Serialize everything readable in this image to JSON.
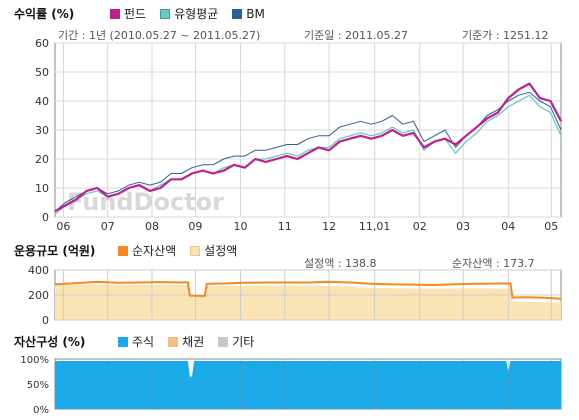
{
  "chart_data": [
    {
      "type": "line",
      "title": "수익률 (%)",
      "legend": [
        {
          "name": "펀드",
          "color": "#c0208e"
        },
        {
          "name": "유형평균",
          "color": "#6ec9c4"
        },
        {
          "name": "BM",
          "color": "#2b5f9a"
        }
      ],
      "info": {
        "period": "기간 : 1년 (2010.05.27 ~ 2011.05.27)",
        "base_date": "기준일 : 2011.05.27",
        "base_price": "기준가 : 1251.12"
      },
      "watermark": "FundDoctor",
      "ylim": [
        0,
        60
      ],
      "yticks": [
        0,
        10,
        20,
        30,
        40,
        50,
        60
      ],
      "xlim": [
        0,
        12
      ],
      "xticks": [
        {
          "label": "06",
          "x": 0.2
        },
        {
          "label": "07",
          "x": 1.25
        },
        {
          "label": "08",
          "x": 2.3
        },
        {
          "label": "09",
          "x": 3.33
        },
        {
          "label": "10",
          "x": 4.4
        },
        {
          "label": "11",
          "x": 5.45
        },
        {
          "label": "12",
          "x": 6.5
        },
        {
          "label": "11,01",
          "x": 7.58
        },
        {
          "label": "02",
          "x": 8.65
        },
        {
          "label": "03",
          "x": 9.68
        },
        {
          "label": "04",
          "x": 10.75
        },
        {
          "label": "05",
          "x": 11.77
        }
      ],
      "grid": true,
      "series": [
        {
          "name": "펀드",
          "color": "#c0208e",
          "width": 2.2,
          "x": [
            0,
            0.25,
            0.5,
            0.75,
            1.0,
            1.25,
            1.5,
            1.75,
            2.0,
            2.25,
            2.5,
            2.75,
            3.0,
            3.25,
            3.5,
            3.75,
            4.0,
            4.25,
            4.5,
            4.75,
            5.0,
            5.25,
            5.5,
            5.75,
            6.0,
            6.25,
            6.5,
            6.75,
            7.0,
            7.25,
            7.5,
            7.75,
            8.0,
            8.25,
            8.5,
            8.75,
            9.0,
            9.25,
            9.5,
            9.75,
            10.0,
            10.25,
            10.5,
            10.75,
            11.0,
            11.25,
            11.5,
            11.75,
            12.0
          ],
          "values": [
            2,
            4,
            6,
            9,
            10,
            7,
            8,
            10,
            11,
            9,
            10,
            13,
            13,
            15,
            16,
            15,
            16,
            18,
            17,
            20,
            19,
            20,
            21,
            20,
            22,
            24,
            23,
            26,
            27,
            28,
            27,
            28,
            30,
            28,
            29,
            24,
            26,
            27,
            25,
            28,
            31,
            34,
            36,
            41,
            44,
            46,
            41,
            40,
            33
          ]
        },
        {
          "name": "유형평균",
          "color": "#6ec9c4",
          "width": 1.3,
          "x": [
            0,
            0.25,
            0.5,
            0.75,
            1.0,
            1.25,
            1.5,
            1.75,
            2.0,
            2.25,
            2.5,
            2.75,
            3.0,
            3.25,
            3.5,
            3.75,
            4.0,
            4.25,
            4.5,
            4.75,
            5.0,
            5.25,
            5.5,
            5.75,
            6.0,
            6.25,
            6.5,
            6.75,
            7.0,
            7.25,
            7.5,
            7.75,
            8.0,
            8.25,
            8.5,
            8.75,
            9.0,
            9.25,
            9.5,
            9.75,
            10.0,
            10.25,
            10.5,
            10.75,
            11.0,
            11.25,
            11.5,
            11.75,
            12.0
          ],
          "values": [
            1,
            4,
            6,
            8,
            9,
            7,
            8,
            10,
            11,
            9,
            11,
            13,
            13,
            15,
            16,
            15,
            17,
            18,
            17,
            20,
            20,
            21,
            22,
            21,
            23,
            24,
            24,
            27,
            28,
            29,
            28,
            29,
            31,
            29,
            30,
            23,
            26,
            27,
            22,
            26,
            29,
            33,
            35,
            38,
            40,
            42,
            38,
            36,
            28
          ]
        },
        {
          "name": "BM",
          "color": "#2b5f9a",
          "width": 1.0,
          "x": [
            0,
            0.25,
            0.5,
            0.75,
            1.0,
            1.25,
            1.5,
            1.75,
            2.0,
            2.25,
            2.5,
            2.75,
            3.0,
            3.25,
            3.5,
            3.75,
            4.0,
            4.25,
            4.5,
            4.75,
            5.0,
            5.25,
            5.5,
            5.75,
            6.0,
            6.25,
            6.5,
            6.75,
            7.0,
            7.25,
            7.5,
            7.75,
            8.0,
            8.25,
            8.5,
            8.75,
            9.0,
            9.25,
            9.5,
            9.75,
            10.0,
            10.25,
            10.5,
            10.75,
            11.0,
            11.25,
            11.5,
            11.75,
            12.0
          ],
          "values": [
            2,
            5,
            7,
            9,
            10,
            8,
            9,
            11,
            12,
            11,
            12,
            15,
            15,
            17,
            18,
            18,
            20,
            21,
            21,
            23,
            23,
            24,
            25,
            25,
            27,
            28,
            28,
            31,
            32,
            33,
            32,
            33,
            35,
            32,
            33,
            26,
            28,
            30,
            24,
            28,
            31,
            35,
            37,
            40,
            42,
            43,
            40,
            38,
            30
          ]
        }
      ]
    },
    {
      "type": "area",
      "title": "운용규모 (억원)",
      "legend": [
        {
          "name": "순자산액",
          "color": "#f5881f"
        },
        {
          "name": "설정액",
          "color": "#fae4b4"
        }
      ],
      "info": {
        "set_amount": "설정액 : 138.8",
        "net_assets": "순자산액 : 173.7"
      },
      "ylim": [
        0,
        400
      ],
      "yticks": [
        0,
        200,
        400
      ],
      "xlim": [
        0,
        12
      ],
      "xticks": [
        0.2,
        1.25,
        2.3,
        3.33,
        4.4,
        5.45,
        6.5,
        7.58,
        8.65,
        9.68,
        10.75,
        11.77
      ],
      "grid": true,
      "series": [
        {
          "name": "설정액",
          "color": "#fae4b4",
          "x": [
            0,
            1.0,
            2.0,
            3.15,
            3.2,
            3.55,
            3.6,
            4.0,
            5.0,
            6.0,
            7.0,
            7.2,
            8.0,
            9.0,
            10.0,
            10.8,
            10.85,
            12.0
          ],
          "values": [
            280,
            285,
            280,
            280,
            185,
            185,
            275,
            275,
            275,
            275,
            270,
            260,
            255,
            250,
            255,
            250,
            150,
            140
          ]
        },
        {
          "name": "순자산액",
          "color": "#f5881f",
          "x": [
            0,
            0.5,
            1.0,
            1.5,
            2.0,
            2.5,
            3.0,
            3.15,
            3.2,
            3.55,
            3.6,
            4.0,
            4.5,
            5.0,
            5.5,
            6.0,
            6.5,
            7.0,
            7.5,
            8.0,
            8.5,
            9.0,
            9.5,
            10.0,
            10.5,
            10.8,
            10.85,
            11.2,
            11.6,
            12.0
          ],
          "values": [
            285,
            295,
            305,
            298,
            300,
            303,
            300,
            302,
            195,
            192,
            290,
            292,
            298,
            300,
            300,
            300,
            305,
            300,
            290,
            285,
            283,
            280,
            286,
            290,
            292,
            292,
            180,
            182,
            178,
            170
          ]
        }
      ]
    },
    {
      "type": "area",
      "title": "자산구성 (%)",
      "legend": [
        {
          "name": "주식",
          "color": "#1aa9e9"
        },
        {
          "name": "채권",
          "color": "#f6be80"
        },
        {
          "name": "기타",
          "color": "#c8c8c8"
        }
      ],
      "ylim": [
        0,
        100
      ],
      "yticks": [
        "0%",
        "50%",
        "100%"
      ],
      "xlim": [
        0,
        12
      ],
      "xticks": [
        0.2,
        1.25,
        2.3,
        3.33,
        4.4,
        5.45,
        6.5,
        7.58,
        8.65,
        9.68,
        10.75,
        11.77
      ],
      "grid": true,
      "series": [
        {
          "name": "주식",
          "color": "#1aa9e9",
          "x": [
            0,
            3.15,
            3.2,
            3.25,
            3.3,
            10.7,
            10.75,
            10.8,
            12.0
          ],
          "values": [
            96,
            96,
            65,
            65,
            96,
            96,
            75,
            96,
            96
          ]
        }
      ]
    }
  ]
}
